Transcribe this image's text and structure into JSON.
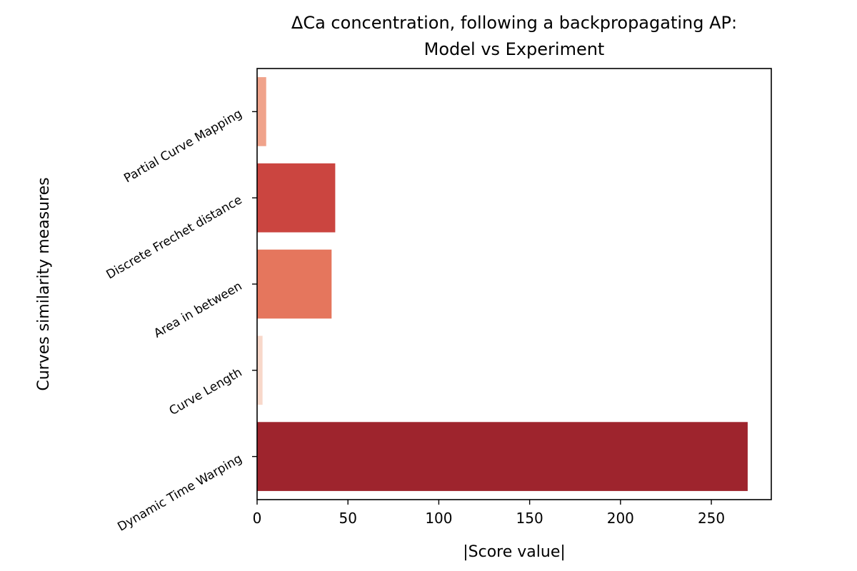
{
  "chart_data": {
    "type": "bar",
    "orientation": "horizontal",
    "title_lines": [
      "ΔCa concentration, following a backpropagating AP:",
      "Model vs Experiment"
    ],
    "xlabel": "|Score value|",
    "ylabel": "Curves similarity measures",
    "xlim": [
      0,
      283
    ],
    "xticks": [
      0,
      50,
      100,
      150,
      200,
      250
    ],
    "grid": false,
    "categories": [
      "Partial Curve Mapping",
      "Discrete Frechet distance",
      "Area in between",
      "Curve Length",
      "Dynamic Time Warping"
    ],
    "values": [
      5,
      43,
      41,
      3,
      270
    ],
    "colors": [
      "#f0a38b",
      "#cb4540",
      "#e5765d",
      "#f8d8ca",
      "#9e242d"
    ]
  }
}
